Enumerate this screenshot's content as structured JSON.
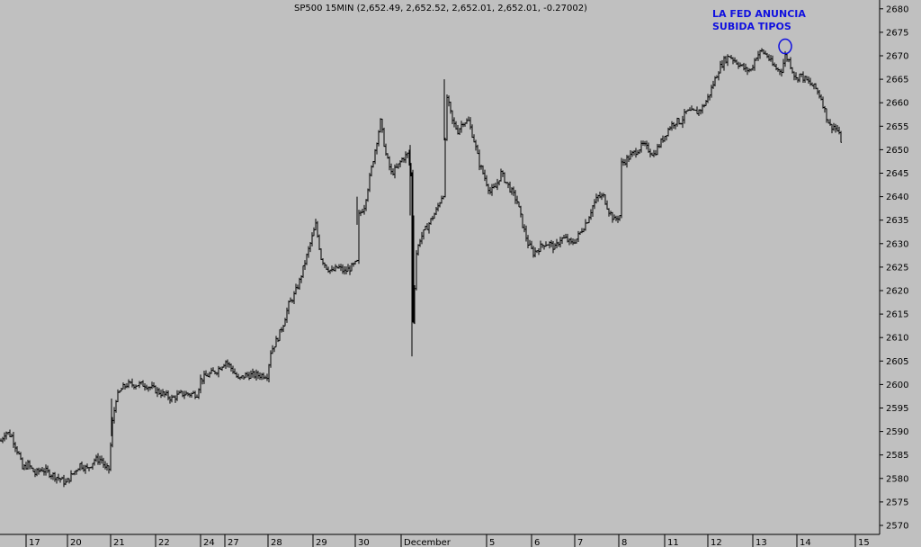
{
  "chart_data": {
    "type": "bar",
    "subtype": "ohlc",
    "title": "SP500 15MIN (2,652.49, 2,652.52, 2,652.01, 2,652.01, -0.27002)",
    "annotation": {
      "line1": "LA FED ANUNCIA",
      "line2": "SUBIDA TIPOS",
      "marker": "circle",
      "marker_color": "#1010e0",
      "circled_price": 2672
    },
    "xlabel": "",
    "ylabel": "",
    "ylim": [
      2567,
      2683
    ],
    "y_ticks": [
      2570,
      2575,
      2580,
      2585,
      2590,
      2595,
      2600,
      2605,
      2610,
      2615,
      2620,
      2625,
      2630,
      2635,
      2640,
      2645,
      2650,
      2655,
      2660,
      2665,
      2670,
      2675,
      2680
    ],
    "x_labels": [
      "17",
      "20",
      "21",
      "22",
      "24",
      "27",
      "28",
      "29",
      "30",
      "December",
      "5",
      "6",
      "7",
      "8",
      "11",
      "12",
      "13",
      "14",
      "15"
    ],
    "grid": false,
    "legend": "none",
    "colors": {
      "background": "#c0c0c0",
      "bars": "#000000",
      "annotation": "#1010e0"
    },
    "path": [
      [
        0,
        2588
      ],
      [
        5,
        2590
      ],
      [
        12,
        2589
      ],
      [
        20,
        2585
      ],
      [
        24,
        2582
      ],
      [
        30,
        2583
      ],
      [
        38,
        2581
      ],
      [
        45,
        2582
      ],
      [
        55,
        2581
      ],
      [
        65,
        2580
      ],
      [
        72,
        2579
      ],
      [
        80,
        2581
      ],
      [
        88,
        2583
      ],
      [
        96,
        2582
      ],
      [
        104,
        2584
      ],
      [
        112,
        2584
      ],
      [
        116,
        2582
      ],
      [
        120,
        2582
      ],
      [
        124,
        2592
      ],
      [
        128,
        2597
      ],
      [
        134,
        2599
      ],
      [
        140,
        2600
      ],
      [
        150,
        2600
      ],
      [
        160,
        2600
      ],
      [
        170,
        2599
      ],
      [
        180,
        2598
      ],
      [
        190,
        2597
      ],
      [
        200,
        2598
      ],
      [
        210,
        2598
      ],
      [
        218,
        2598
      ],
      [
        222,
        2601
      ],
      [
        230,
        2602
      ],
      [
        240,
        2603
      ],
      [
        250,
        2605
      ],
      [
        258,
        2603
      ],
      [
        264,
        2601
      ],
      [
        272,
        2602
      ],
      [
        280,
        2602
      ],
      [
        290,
        2602
      ],
      [
        296,
        2602
      ],
      [
        300,
        2607
      ],
      [
        308,
        2610
      ],
      [
        314,
        2613
      ],
      [
        320,
        2617
      ],
      [
        326,
        2619
      ],
      [
        332,
        2622
      ],
      [
        338,
        2626
      ],
      [
        344,
        2630
      ],
      [
        350,
        2634
      ],
      [
        356,
        2627
      ],
      [
        362,
        2625
      ],
      [
        368,
        2624
      ],
      [
        375,
        2625
      ],
      [
        382,
        2624
      ],
      [
        390,
        2625
      ],
      [
        396,
        2626
      ],
      [
        398,
        2636
      ],
      [
        404,
        2638
      ],
      [
        410,
        2644
      ],
      [
        416,
        2650
      ],
      [
        422,
        2656
      ],
      [
        428,
        2649
      ],
      [
        434,
        2645
      ],
      [
        440,
        2646
      ],
      [
        446,
        2648
      ],
      [
        452,
        2649
      ],
      [
        456,
        2645
      ],
      [
        458,
        2614
      ],
      [
        462,
        2628
      ],
      [
        466,
        2631
      ],
      [
        472,
        2633
      ],
      [
        478,
        2635
      ],
      [
        484,
        2637
      ],
      [
        490,
        2640
      ],
      [
        493,
        2641
      ],
      [
        495,
        2662
      ],
      [
        502,
        2656
      ],
      [
        508,
        2654
      ],
      [
        514,
        2656
      ],
      [
        520,
        2656
      ],
      [
        526,
        2652
      ],
      [
        532,
        2647
      ],
      [
        538,
        2644
      ],
      [
        544,
        2641
      ],
      [
        550,
        2642
      ],
      [
        556,
        2645
      ],
      [
        562,
        2643
      ],
      [
        568,
        2641
      ],
      [
        574,
        2639
      ],
      [
        580,
        2634
      ],
      [
        586,
        2630
      ],
      [
        592,
        2628
      ],
      [
        598,
        2629
      ],
      [
        604,
        2630
      ],
      [
        610,
        2630
      ],
      [
        616,
        2629
      ],
      [
        622,
        2631
      ],
      [
        628,
        2631
      ],
      [
        634,
        2630
      ],
      [
        640,
        2631
      ],
      [
        646,
        2633
      ],
      [
        652,
        2635
      ],
      [
        658,
        2638
      ],
      [
        664,
        2640
      ],
      [
        670,
        2640
      ],
      [
        676,
        2637
      ],
      [
        682,
        2635
      ],
      [
        688,
        2636
      ],
      [
        690,
        2647
      ],
      [
        696,
        2648
      ],
      [
        702,
        2649
      ],
      [
        708,
        2650
      ],
      [
        714,
        2651
      ],
      [
        720,
        2650
      ],
      [
        726,
        2649
      ],
      [
        732,
        2651
      ],
      [
        738,
        2653
      ],
      [
        744,
        2655
      ],
      [
        750,
        2656
      ],
      [
        756,
        2656
      ],
      [
        762,
        2658
      ],
      [
        768,
        2658
      ],
      [
        774,
        2658
      ],
      [
        780,
        2659
      ],
      [
        786,
        2661
      ],
      [
        792,
        2664
      ],
      [
        798,
        2667
      ],
      [
        804,
        2669
      ],
      [
        810,
        2670
      ],
      [
        816,
        2669
      ],
      [
        822,
        2668
      ],
      [
        828,
        2667
      ],
      [
        834,
        2667
      ],
      [
        840,
        2670
      ],
      [
        846,
        2671
      ],
      [
        852,
        2670
      ],
      [
        858,
        2668
      ],
      [
        864,
        2667
      ],
      [
        868,
        2667
      ],
      [
        872,
        2670
      ],
      [
        876,
        2669
      ],
      [
        880,
        2667
      ],
      [
        884,
        2665
      ],
      [
        888,
        2666
      ],
      [
        894,
        2665
      ],
      [
        900,
        2664
      ],
      [
        906,
        2663
      ],
      [
        912,
        2661
      ],
      [
        918,
        2657
      ],
      [
        922,
        2655
      ],
      [
        926,
        2655
      ],
      [
        930,
        2654
      ],
      [
        934,
        2652
      ]
    ]
  }
}
